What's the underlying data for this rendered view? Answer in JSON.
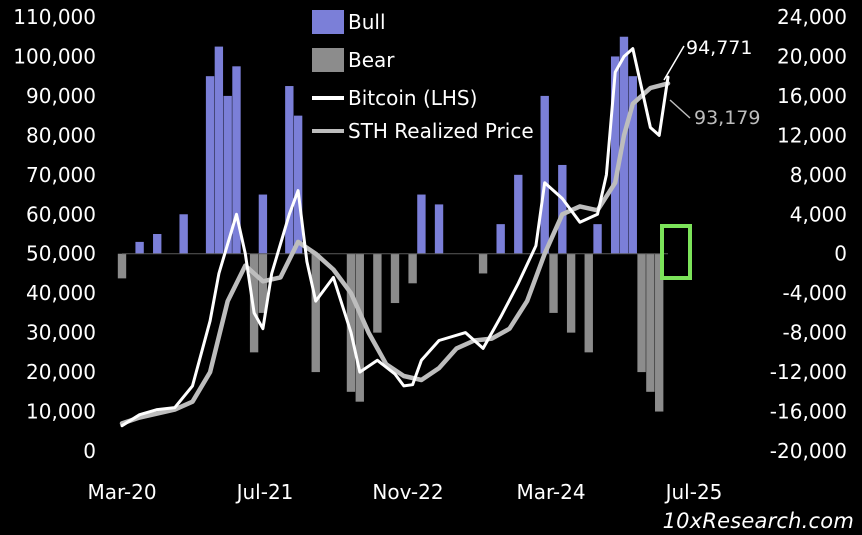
{
  "chart_data": {
    "type": "area",
    "title": "",
    "xlabel": "",
    "ylabel": "",
    "x_tick_labels": [
      "Mar-20",
      "Jul-21",
      "Nov-22",
      "Mar-24",
      "Jul-25"
    ],
    "left_axis": {
      "min": 0,
      "max": 110000,
      "ticks": [
        "0",
        "10,000",
        "20,000",
        "30,000",
        "40,000",
        "50,000",
        "60,000",
        "70,000",
        "80,000",
        "90,000",
        "100,000",
        "110,000"
      ]
    },
    "right_axis": {
      "min": -20000,
      "max": 24000,
      "ticks": [
        "-20,000",
        "-16,000",
        "-12,000",
        "-8,000",
        "-4,000",
        "0",
        "4,000",
        "8,000",
        "12,000",
        "16,000",
        "20,000",
        "24,000"
      ]
    },
    "legend": {
      "position": "top-center",
      "items": [
        "Bull",
        "Bear",
        "Bitcoin (LHS)",
        "STH Realized Price"
      ]
    },
    "annotations": {
      "bitcoin_last": "94,771",
      "sth_last": "93,179"
    },
    "colors": {
      "bull": "#7B7FD8",
      "bear": "#8C8C8C",
      "bitcoin": "#FFFFFF",
      "sth": "#BDBDBD",
      "highlight": "#7CE35A",
      "background": "#000000"
    },
    "series": [
      {
        "name": "Bitcoin (LHS)",
        "axis": "left",
        "points": [
          [
            "2020-03",
            6400
          ],
          [
            "2020-05",
            9200
          ],
          [
            "2020-07",
            10500
          ],
          [
            "2020-09",
            11000
          ],
          [
            "2020-11",
            16500
          ],
          [
            "2021-01",
            33000
          ],
          [
            "2021-02",
            45000
          ],
          [
            "2021-04",
            60000
          ],
          [
            "2021-05",
            50000
          ],
          [
            "2021-06",
            35000
          ],
          [
            "2021-07",
            31000
          ],
          [
            "2021-08",
            45000
          ],
          [
            "2021-10",
            60000
          ],
          [
            "2021-11",
            66000
          ],
          [
            "2021-12",
            48000
          ],
          [
            "2022-01",
            38000
          ],
          [
            "2022-03",
            44000
          ],
          [
            "2022-05",
            30000
          ],
          [
            "2022-06",
            20000
          ],
          [
            "2022-08",
            23000
          ],
          [
            "2022-10",
            19500
          ],
          [
            "2022-11",
            16500
          ],
          [
            "2022-12",
            16800
          ],
          [
            "2023-01",
            23000
          ],
          [
            "2023-03",
            28000
          ],
          [
            "2023-06",
            30000
          ],
          [
            "2023-08",
            26000
          ],
          [
            "2023-10",
            34000
          ],
          [
            "2023-12",
            42500
          ],
          [
            "2024-02",
            52000
          ],
          [
            "2024-03",
            68000
          ],
          [
            "2024-05",
            64000
          ],
          [
            "2024-07",
            58000
          ],
          [
            "2024-09",
            60000
          ],
          [
            "2024-10",
            70000
          ],
          [
            "2024-11",
            96000
          ],
          [
            "2024-12",
            100000
          ],
          [
            "2025-01",
            102000
          ],
          [
            "2025-02",
            92000
          ],
          [
            "2025-03",
            82000
          ],
          [
            "2025-04",
            80000
          ],
          [
            "2025-05",
            94771
          ]
        ]
      },
      {
        "name": "STH Realized Price",
        "axis": "left",
        "points": [
          [
            "2020-03",
            7000
          ],
          [
            "2020-05",
            8500
          ],
          [
            "2020-07",
            9500
          ],
          [
            "2020-09",
            10500
          ],
          [
            "2020-11",
            12500
          ],
          [
            "2021-01",
            20000
          ],
          [
            "2021-03",
            38000
          ],
          [
            "2021-05",
            47000
          ],
          [
            "2021-07",
            43000
          ],
          [
            "2021-09",
            44000
          ],
          [
            "2021-11",
            53000
          ],
          [
            "2022-01",
            50000
          ],
          [
            "2022-03",
            46000
          ],
          [
            "2022-05",
            40000
          ],
          [
            "2022-07",
            30000
          ],
          [
            "2022-09",
            22000
          ],
          [
            "2022-11",
            19000
          ],
          [
            "2023-01",
            18000
          ],
          [
            "2023-03",
            21000
          ],
          [
            "2023-05",
            26000
          ],
          [
            "2023-07",
            28000
          ],
          [
            "2023-09",
            28500
          ],
          [
            "2023-11",
            31000
          ],
          [
            "2024-01",
            38000
          ],
          [
            "2024-03",
            50000
          ],
          [
            "2024-05",
            60000
          ],
          [
            "2024-07",
            62000
          ],
          [
            "2024-09",
            61000
          ],
          [
            "2024-11",
            68000
          ],
          [
            "2024-12",
            80000
          ],
          [
            "2025-01",
            88000
          ],
          [
            "2025-03",
            92000
          ],
          [
            "2025-05",
            93179
          ]
        ]
      },
      {
        "name": "Bull",
        "axis": "right",
        "points": [
          [
            "2020-05",
            1200
          ],
          [
            "2020-07",
            2000
          ],
          [
            "2020-10",
            4000
          ],
          [
            "2021-01",
            18000
          ],
          [
            "2021-02",
            21000
          ],
          [
            "2021-03",
            16000
          ],
          [
            "2021-04",
            19000
          ],
          [
            "2021-07",
            6000
          ],
          [
            "2021-10",
            17000
          ],
          [
            "2021-11",
            14000
          ],
          [
            "2023-01",
            6000
          ],
          [
            "2023-03",
            5000
          ],
          [
            "2023-10",
            3000
          ],
          [
            "2023-12",
            8000
          ],
          [
            "2024-03",
            16000
          ],
          [
            "2024-05",
            9000
          ],
          [
            "2024-09",
            3000
          ],
          [
            "2024-11",
            20000
          ],
          [
            "2024-12",
            22000
          ],
          [
            "2025-01",
            18000
          ]
        ]
      },
      {
        "name": "Bear",
        "axis": "right",
        "points": [
          [
            "2020-03",
            -2500
          ],
          [
            "2021-06",
            -10000
          ],
          [
            "2021-07",
            -6000
          ],
          [
            "2022-01",
            -12000
          ],
          [
            "2022-05",
            -14000
          ],
          [
            "2022-06",
            -15000
          ],
          [
            "2022-08",
            -8000
          ],
          [
            "2022-10",
            -5000
          ],
          [
            "2022-12",
            -3000
          ],
          [
            "2023-08",
            -2000
          ],
          [
            "2024-04",
            -6000
          ],
          [
            "2024-06",
            -8000
          ],
          [
            "2024-08",
            -10000
          ],
          [
            "2025-02",
            -12000
          ],
          [
            "2025-03",
            -14000
          ],
          [
            "2025-04",
            -16000
          ]
        ]
      }
    ]
  },
  "branding": {
    "watermark": "10xResearch.com"
  }
}
